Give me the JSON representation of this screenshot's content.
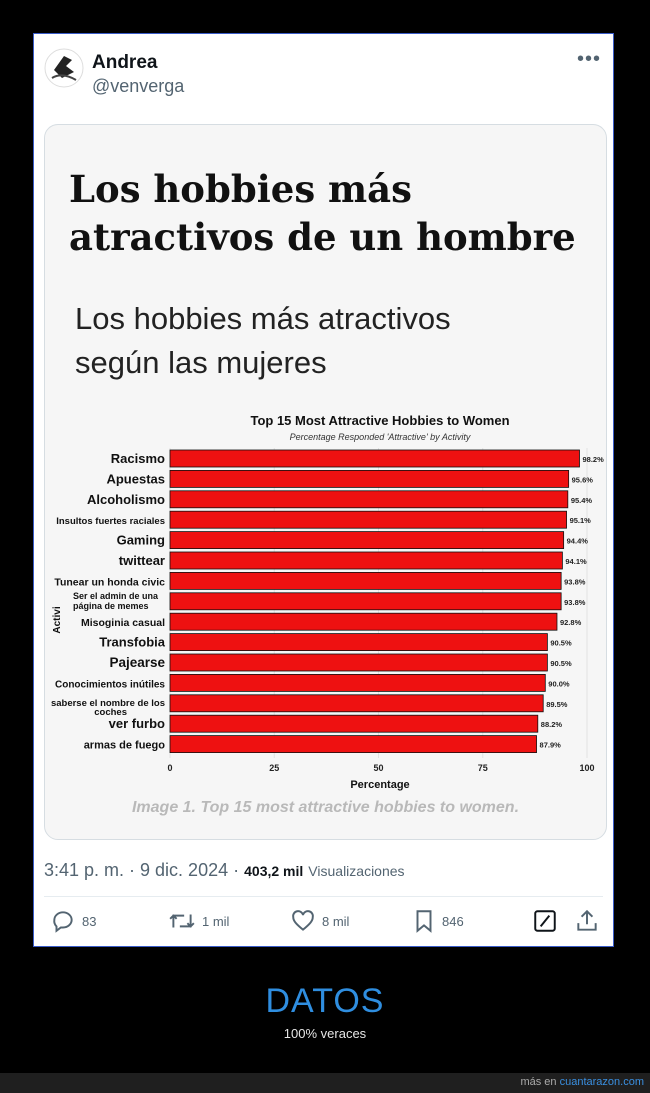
{
  "tweet": {
    "author_name": "Andrea",
    "handle": "@venverga",
    "more_label": "•••",
    "time": "3:41 p. m. · 9 dic. 2024 ·",
    "views_count": "403,2 mil",
    "views_label": "Visualizaciones",
    "actions": {
      "replies": "83",
      "retweets": "1 mil",
      "likes": "8 mil",
      "bookmarks": "846"
    }
  },
  "image": {
    "headline_line1": "Los hobbies más",
    "headline_line2": "atractivos de un hombre",
    "subhead_line1": "Los hobbies más atractivos",
    "subhead_line2": "según las mujeres",
    "caption": "Image 1. Top 15 most attractive hobbies to women."
  },
  "chart_data": {
    "type": "bar",
    "orientation": "horizontal",
    "title": "Top 15 Most Attractive Hobbies to Women",
    "subtitle": "Percentage Responded 'Attractive' by Activity",
    "xlabel": "Percentage",
    "ylabel": "Activi",
    "xlim": [
      0,
      100
    ],
    "xticks": [
      "0",
      "25",
      "50",
      "75",
      "100"
    ],
    "bar_color": "#ee1111",
    "categories": [
      "Racismo",
      "Apuestas",
      "Alcoholismo",
      "Insultos fuertes raciales",
      "Gaming",
      "twittear",
      "Tunear un honda civic",
      "Ser el admin de una página de memes",
      "Misoginia casual",
      "Transfobia",
      "Pajearse",
      "Conocimientos inútiles",
      "saberse el nombre de los coches",
      "ver furbo",
      "armas de fuego"
    ],
    "values": [
      98.2,
      95.6,
      95.4,
      95.1,
      94.4,
      94.1,
      93.8,
      93.8,
      92.8,
      90.5,
      90.5,
      90.0,
      89.5,
      88.2,
      87.9
    ],
    "value_labels": [
      "98.2%",
      "95.6%",
      "95.4%",
      "95.1%",
      "94.4%",
      "94.1%",
      "93.8%",
      "93.8%",
      "92.8%",
      "90.5%",
      "90.5%",
      "90.0%",
      "89.5%",
      "88.2%",
      "87.9%"
    ]
  },
  "footer": {
    "title": "DATOS",
    "subtitle": "100% veraces",
    "credit_prefix": "más en",
    "credit_site": "cuantarazon.com"
  }
}
